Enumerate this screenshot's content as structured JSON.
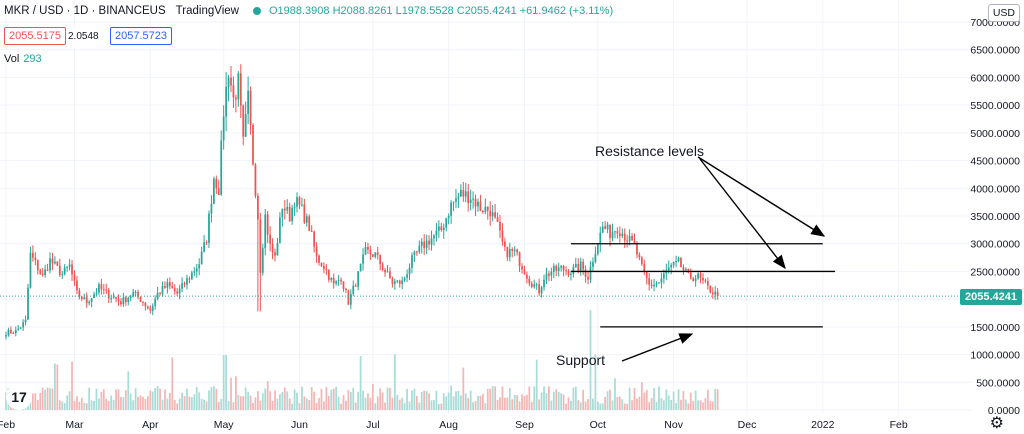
{
  "header": {
    "symbol": "MKR / USD · 1D · BINANCEUS",
    "source": "TradingView",
    "ohlc": "O1988.3908 H2088.8261 L1978.5528 C2055.4241 +61.9462 (+3.11%)"
  },
  "price_boxes": {
    "sell": "2055.5175",
    "spread": "2.0548",
    "buy": "2057.5723"
  },
  "volume": {
    "label": "Vol",
    "value": "293"
  },
  "currency": "USD",
  "last_price": "2055.4241",
  "annotations": {
    "resistance": "Resistance levels",
    "support": "Support"
  },
  "logo_text": "17",
  "colors": {
    "up": "#26a69a",
    "down": "#ef5350",
    "up_volume": "#a8dcd7",
    "down_volume": "#f4b6b4",
    "line": "#000000",
    "grid": "#f0f3fa"
  },
  "icons": {
    "settings": "gear-icon",
    "logo": "tradingview-logo-icon"
  },
  "chart_data": {
    "type": "candlestick",
    "title": "MKR / USD · 1D · BINANCEUS",
    "y_axis": {
      "ticks": [
        "7000.0000",
        "6500.0000",
        "6000.0000",
        "5500.0000",
        "5000.0000",
        "4500.0000",
        "4000.0000",
        "3500.0000",
        "3000.0000",
        "2500.0000",
        "2000.0000",
        "1500.0000",
        "1000.0000",
        "500.0000",
        "0.0000"
      ],
      "tick_values": [
        7000,
        6500,
        6000,
        5500,
        5000,
        4500,
        4000,
        3500,
        3000,
        2500,
        2000,
        1500,
        1000,
        500,
        0
      ],
      "ylim": [
        0,
        7000
      ]
    },
    "x_axis": {
      "ticks": [
        "Feb",
        "Mar",
        "Apr",
        "May",
        "Jun",
        "Jul",
        "Aug",
        "Sep",
        "Oct",
        "Nov",
        "Dec",
        "2022",
        "Feb"
      ],
      "xlim_days": [
        0,
        395
      ],
      "tick_days": [
        0,
        28,
        59,
        89,
        120,
        150,
        181,
        212,
        242,
        273,
        303,
        334,
        365
      ]
    },
    "price_path": [
      [
        0,
        1400
      ],
      [
        4,
        1420
      ],
      [
        8,
        1600
      ],
      [
        10,
        2800
      ],
      [
        12,
        2650
      ],
      [
        15,
        2400
      ],
      [
        18,
        2700
      ],
      [
        20,
        2600
      ],
      [
        23,
        2450
      ],
      [
        26,
        2600
      ],
      [
        29,
        2100
      ],
      [
        33,
        1950
      ],
      [
        38,
        2200
      ],
      [
        43,
        2050
      ],
      [
        47,
        1950
      ],
      [
        52,
        2100
      ],
      [
        55,
        2000
      ],
      [
        59,
        1800
      ],
      [
        62,
        2100
      ],
      [
        66,
        2250
      ],
      [
        70,
        2100
      ],
      [
        75,
        2400
      ],
      [
        79,
        2650
      ],
      [
        82,
        3100
      ],
      [
        85,
        4200
      ],
      [
        87,
        4000
      ],
      [
        89,
        5400
      ],
      [
        91,
        6150
      ],
      [
        93,
        5600
      ],
      [
        95,
        5900
      ],
      [
        97,
        4800
      ],
      [
        99,
        5600
      ],
      [
        101,
        4500
      ],
      [
        103,
        3500
      ],
      [
        104,
        2550
      ],
      [
        106,
        3500
      ],
      [
        108,
        2950
      ],
      [
        110,
        2750
      ],
      [
        113,
        3700
      ],
      [
        116,
        3500
      ],
      [
        118,
        3800
      ],
      [
        121,
        3600
      ],
      [
        124,
        3300
      ],
      [
        127,
        2750
      ],
      [
        130,
        2600
      ],
      [
        134,
        2250
      ],
      [
        137,
        2400
      ],
      [
        140,
        1950
      ],
      [
        143,
        2300
      ],
      [
        147,
        2850
      ],
      [
        151,
        2800
      ],
      [
        155,
        2500
      ],
      [
        158,
        2300
      ],
      [
        162,
        2300
      ],
      [
        166,
        2700
      ],
      [
        170,
        2950
      ],
      [
        174,
        3100
      ],
      [
        178,
        3250
      ],
      [
        182,
        3700
      ],
      [
        186,
        3900
      ],
      [
        190,
        3850
      ],
      [
        194,
        3650
      ],
      [
        198,
        3600
      ],
      [
        201,
        3300
      ],
      [
        204,
        2850
      ],
      [
        208,
        2850
      ],
      [
        211,
        2600
      ],
      [
        214,
        2350
      ],
      [
        218,
        2150
      ],
      [
        220,
        2400
      ],
      [
        223,
        2500
      ],
      [
        227,
        2550
      ],
      [
        231,
        2500
      ],
      [
        235,
        2600
      ],
      [
        238,
        2400
      ],
      [
        241,
        2900
      ],
      [
        244,
        3300
      ],
      [
        247,
        3200
      ],
      [
        250,
        3300
      ],
      [
        254,
        3100
      ],
      [
        257,
        2950
      ],
      [
        260,
        2550
      ],
      [
        263,
        2250
      ],
      [
        267,
        2300
      ],
      [
        271,
        2550
      ],
      [
        275,
        2650
      ],
      [
        279,
        2400
      ],
      [
        283,
        2400
      ],
      [
        287,
        2200
      ],
      [
        291,
        2050
      ]
    ],
    "events": {
      "spike_low": {
        "day": 103.5,
        "low": 1780
      },
      "volume_spike": {
        "day": 239,
        "volume_level": 1800
      }
    },
    "lines": [
      {
        "label": "resistance",
        "y": 3000,
        "from_day": 231,
        "to_day": 334
      },
      {
        "label": "resistance",
        "y": 2500,
        "from_day": 231,
        "to_day": 339
      },
      {
        "label": "support",
        "y": 1500,
        "from_day": 243,
        "to_day": 334
      }
    ],
    "current_price": 2055.4241
  }
}
